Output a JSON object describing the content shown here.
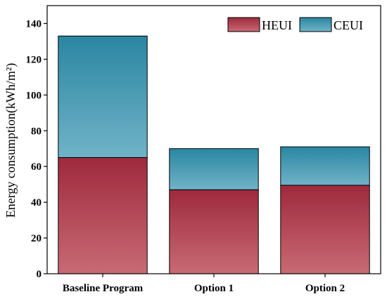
{
  "chart_data": {
    "type": "bar",
    "stacked": true,
    "categories": [
      "Baseline Program",
      "Option 1",
      "Option 2"
    ],
    "series": [
      {
        "name": "HEUI",
        "values": [
          65,
          47,
          49.5
        ],
        "color": "#9e2a3c",
        "color_light": "#c86a74"
      },
      {
        "name": "CEUI",
        "values": [
          68,
          23,
          21.5
        ],
        "color": "#2a86a2",
        "color_light": "#70b3c7"
      }
    ],
    "title": "",
    "xlabel": "",
    "ylabel": "Energy consumption(kWh/m²)",
    "ylim": [
      0,
      150
    ],
    "yticks": [
      0,
      20,
      40,
      60,
      80,
      100,
      120,
      140
    ],
    "grid": false,
    "legend_position": "top-right"
  }
}
